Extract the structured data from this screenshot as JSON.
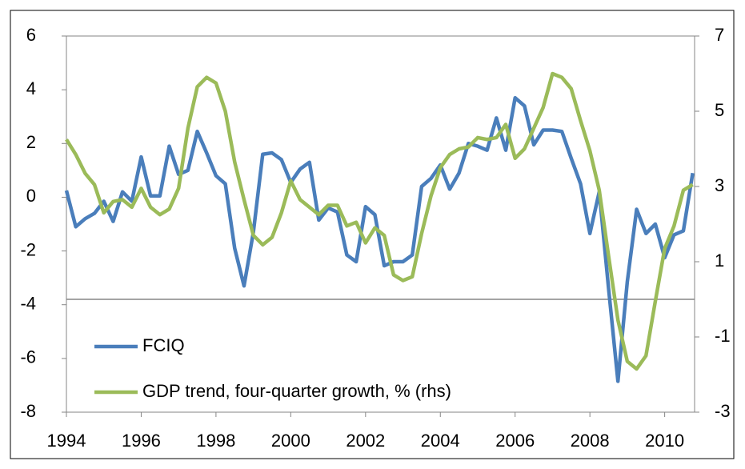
{
  "chart_data": {
    "type": "line",
    "x": [
      1994,
      1994.25,
      1994.5,
      1994.75,
      1995,
      1995.25,
      1995.5,
      1995.75,
      1996,
      1996.25,
      1996.5,
      1996.75,
      1997,
      1997.25,
      1997.5,
      1997.75,
      1998,
      1998.25,
      1998.5,
      1998.75,
      1999,
      1999.25,
      1999.5,
      1999.75,
      2000,
      2000.25,
      2000.5,
      2000.75,
      2001,
      2001.25,
      2001.5,
      2001.75,
      2002,
      2002.25,
      2002.5,
      2002.75,
      2003,
      2003.25,
      2003.5,
      2003.75,
      2004,
      2004.25,
      2004.5,
      2004.75,
      2005,
      2005.25,
      2005.5,
      2005.75,
      2006,
      2006.25,
      2006.5,
      2006.75,
      2007,
      2007.25,
      2007.5,
      2007.75,
      2008,
      2008.25,
      2008.5,
      2008.75,
      2009,
      2009.25,
      2009.5,
      2009.75,
      2010,
      2010.25,
      2010.5,
      2010.75
    ],
    "series": [
      {
        "name": "FCIQ",
        "color": "#4a7ebb",
        "values": [
          0.25,
          -1.1,
          -0.8,
          -0.6,
          -0.15,
          -0.9,
          0.2,
          -0.15,
          1.5,
          0.05,
          0.05,
          1.9,
          0.85,
          1.0,
          2.45,
          1.65,
          0.8,
          0.5,
          -1.9,
          -3.3,
          -1.3,
          1.6,
          1.65,
          1.4,
          0.55,
          1.05,
          1.3,
          -0.85,
          -0.4,
          -0.55,
          -2.15,
          -2.4,
          -0.35,
          -0.65,
          -2.55,
          -2.4,
          -2.4,
          -2.15,
          0.4,
          0.7,
          1.2,
          0.3,
          0.9,
          2.0,
          1.9,
          1.75,
          2.95,
          1.75,
          3.7,
          3.4,
          1.95,
          2.5,
          2.5,
          2.45,
          1.45,
          0.5,
          -1.35,
          0.2,
          -3.4,
          -6.85,
          -3.15,
          -0.45,
          -1.35,
          -1.0,
          -2.25,
          -1.4,
          -1.25,
          0.9
        ]
      },
      {
        "name": "GDP trend, four-quarter growth, % (rhs)",
        "color": "#9bbb59",
        "axis": "y2",
        "values": [
          4.25,
          3.85,
          3.35,
          3.05,
          2.3,
          2.6,
          2.65,
          2.45,
          2.95,
          2.45,
          2.25,
          2.4,
          2.95,
          4.55,
          5.65,
          5.9,
          5.75,
          5.0,
          3.65,
          2.65,
          1.7,
          1.45,
          1.65,
          2.3,
          3.15,
          2.65,
          2.45,
          2.25,
          2.5,
          2.5,
          1.95,
          2.05,
          1.5,
          1.9,
          1.7,
          0.65,
          0.5,
          0.6,
          1.75,
          2.75,
          3.5,
          3.85,
          4.0,
          4.05,
          4.3,
          4.25,
          4.3,
          4.65,
          3.75,
          4.0,
          4.55,
          5.1,
          6.0,
          5.9,
          5.6,
          4.75,
          3.95,
          2.9,
          1.15,
          -0.55,
          -1.65,
          -1.85,
          -1.5,
          -0.05,
          1.35,
          1.95,
          2.9,
          3.05
        ]
      }
    ],
    "xlim": [
      1994,
      2010.8
    ],
    "xticks": [
      1994,
      1996,
      1998,
      2000,
      2002,
      2004,
      2006,
      2008,
      2010
    ],
    "ylim": [
      -8,
      6
    ],
    "yticks": [
      -8,
      -6,
      -4,
      -2,
      0,
      2,
      4,
      6
    ],
    "y2lim": [
      -3,
      7
    ],
    "y2ticks": [
      -3,
      -1,
      1,
      3,
      5,
      7
    ],
    "legend": "lower left"
  }
}
